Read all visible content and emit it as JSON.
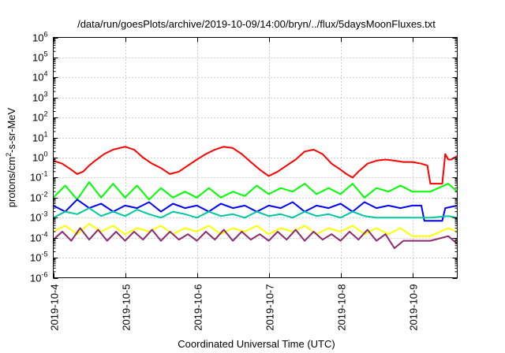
{
  "chart_data": {
    "type": "line",
    "title": "/data/run/goesPlots/archive/2019-10-09/14:00/bryn/../flux/5daysMoonFluxes.txt",
    "xlabel": "Coordinated Universal Time (UTC)",
    "ylabel": {
      "prefix": "protons/cm",
      "sup": "2",
      "suffix": "-s-sr-MeV"
    },
    "yscale": "log",
    "ylim": [
      1e-06,
      1000000.0
    ],
    "xlim": [
      "2019-10-04",
      "2019-10-09T15:00"
    ],
    "grid": true,
    "xticks": [
      "2019-10-4",
      "2019-10-5",
      "2019-10-6",
      "2019-10-7",
      "2019-10-8",
      "2019-10-9"
    ],
    "yticks": [
      {
        "base": "10",
        "exp": "-6"
      },
      {
        "base": "10",
        "exp": "-5"
      },
      {
        "base": "10",
        "exp": "-4"
      },
      {
        "base": "10",
        "exp": "-3"
      },
      {
        "base": "10",
        "exp": "-2"
      },
      {
        "base": "10",
        "exp": "-1"
      },
      {
        "base": "10",
        "exp": "0"
      },
      {
        "base": "10",
        "exp": "1"
      },
      {
        "base": "10",
        "exp": "2"
      },
      {
        "base": "10",
        "exp": "3"
      },
      {
        "base": "10",
        "exp": "4"
      },
      {
        "base": "10",
        "exp": "5"
      },
      {
        "base": "10",
        "exp": "6"
      }
    ],
    "series": [
      {
        "color": "#ff0000",
        "points": [
          [
            "2019-10-04T00:00",
            0.7
          ],
          [
            "2019-10-04T03:00",
            0.5
          ],
          [
            "2019-10-04T06:00",
            0.25
          ],
          [
            "2019-10-04T08:00",
            0.15
          ],
          [
            "2019-10-04T10:00",
            0.2
          ],
          [
            "2019-10-04T12:00",
            0.4
          ],
          [
            "2019-10-04T14:00",
            0.7
          ],
          [
            "2019-10-04T17:00",
            1.5
          ],
          [
            "2019-10-04T20:00",
            2.5
          ],
          [
            "2019-10-05T00:00",
            3.5
          ],
          [
            "2019-10-05T03:00",
            2.5
          ],
          [
            "2019-10-05T06:00",
            1.0
          ],
          [
            "2019-10-05T09:00",
            0.5
          ],
          [
            "2019-10-05T12:00",
            0.3
          ],
          [
            "2019-10-05T15:00",
            0.15
          ],
          [
            "2019-10-05T18:00",
            0.2
          ],
          [
            "2019-10-05T21:00",
            0.4
          ],
          [
            "2019-10-06T00:00",
            0.8
          ],
          [
            "2019-10-06T03:00",
            1.5
          ],
          [
            "2019-10-06T06:00",
            2.5
          ],
          [
            "2019-10-06T09:00",
            3.5
          ],
          [
            "2019-10-06T12:00",
            3.0
          ],
          [
            "2019-10-06T15:00",
            1.5
          ],
          [
            "2019-10-06T18:00",
            0.6
          ],
          [
            "2019-10-06T21:00",
            0.25
          ],
          [
            "2019-10-07T00:00",
            0.12
          ],
          [
            "2019-10-07T03:00",
            0.2
          ],
          [
            "2019-10-07T06:00",
            0.4
          ],
          [
            "2019-10-07T09:00",
            0.8
          ],
          [
            "2019-10-07T12:00",
            2.0
          ],
          [
            "2019-10-07T15:00",
            2.5
          ],
          [
            "2019-10-07T18:00",
            1.5
          ],
          [
            "2019-10-07T21:00",
            0.5
          ],
          [
            "2019-10-08T00:00",
            0.25
          ],
          [
            "2019-10-08T02:00",
            0.15
          ],
          [
            "2019-10-08T04:00",
            0.1
          ],
          [
            "2019-10-08T06:00",
            0.2
          ],
          [
            "2019-10-08T09:00",
            0.5
          ],
          [
            "2019-10-08T12:00",
            0.7
          ],
          [
            "2019-10-08T15:00",
            0.8
          ],
          [
            "2019-10-08T18:00",
            0.7
          ],
          [
            "2019-10-08T21:00",
            0.6
          ],
          [
            "2019-10-09T00:00",
            0.6
          ],
          [
            "2019-10-09T03:00",
            0.5
          ],
          [
            "2019-10-09T05:00",
            0.4
          ],
          [
            "2019-10-09T06:00",
            0.05
          ],
          [
            "2019-10-09T08:00",
            0.05
          ],
          [
            "2019-10-09T10:00",
            0.05
          ],
          [
            "2019-10-09T11:00",
            1.5
          ],
          [
            "2019-10-09T12:00",
            0.8
          ],
          [
            "2019-10-09T13:00",
            0.8
          ],
          [
            "2019-10-09T15:00",
            1.2
          ]
        ]
      },
      {
        "color": "#00ff00",
        "points": [
          [
            "2019-10-04T00:00",
            0.01
          ],
          [
            "2019-10-04T04:00",
            0.04
          ],
          [
            "2019-10-04T08:00",
            0.008
          ],
          [
            "2019-10-04T12:00",
            0.06
          ],
          [
            "2019-10-04T16:00",
            0.01
          ],
          [
            "2019-10-04T20:00",
            0.05
          ],
          [
            "2019-10-05T00:00",
            0.01
          ],
          [
            "2019-10-05T04:00",
            0.04
          ],
          [
            "2019-10-05T08:00",
            0.008
          ],
          [
            "2019-10-05T12:00",
            0.03
          ],
          [
            "2019-10-05T16:00",
            0.01
          ],
          [
            "2019-10-05T20:00",
            0.02
          ],
          [
            "2019-10-06T00:00",
            0.01
          ],
          [
            "2019-10-06T04:00",
            0.03
          ],
          [
            "2019-10-06T08:00",
            0.01
          ],
          [
            "2019-10-06T12:00",
            0.02
          ],
          [
            "2019-10-06T16:00",
            0.012
          ],
          [
            "2019-10-06T20:00",
            0.04
          ],
          [
            "2019-10-07T00:00",
            0.015
          ],
          [
            "2019-10-07T04:00",
            0.03
          ],
          [
            "2019-10-07T08:00",
            0.02
          ],
          [
            "2019-10-07T12:00",
            0.05
          ],
          [
            "2019-10-07T16:00",
            0.015
          ],
          [
            "2019-10-07T20:00",
            0.03
          ],
          [
            "2019-10-08T00:00",
            0.015
          ],
          [
            "2019-10-08T04:00",
            0.05
          ],
          [
            "2019-10-08T08:00",
            0.01
          ],
          [
            "2019-10-08T12:00",
            0.03
          ],
          [
            "2019-10-08T16:00",
            0.02
          ],
          [
            "2019-10-08T20:00",
            0.04
          ],
          [
            "2019-10-09T00:00",
            0.02
          ],
          [
            "2019-10-09T06:00",
            0.02
          ],
          [
            "2019-10-09T12:00",
            0.05
          ],
          [
            "2019-10-09T15:00",
            0.02
          ]
        ]
      },
      {
        "color": "#0000ff",
        "points": [
          [
            "2019-10-04T00:00",
            0.004
          ],
          [
            "2019-10-04T04:00",
            0.002
          ],
          [
            "2019-10-04T08:00",
            0.008
          ],
          [
            "2019-10-04T12:00",
            0.003
          ],
          [
            "2019-10-04T16:00",
            0.005
          ],
          [
            "2019-10-04T20:00",
            0.002
          ],
          [
            "2019-10-05T00:00",
            0.004
          ],
          [
            "2019-10-05T04:00",
            0.003
          ],
          [
            "2019-10-05T08:00",
            0.006
          ],
          [
            "2019-10-05T12:00",
            0.002
          ],
          [
            "2019-10-05T16:00",
            0.005
          ],
          [
            "2019-10-05T20:00",
            0.003
          ],
          [
            "2019-10-06T00:00",
            0.004
          ],
          [
            "2019-10-06T04:00",
            0.002
          ],
          [
            "2019-10-06T08:00",
            0.005
          ],
          [
            "2019-10-06T12:00",
            0.003
          ],
          [
            "2019-10-06T16:00",
            0.004
          ],
          [
            "2019-10-06T20:00",
            0.002
          ],
          [
            "2019-10-07T00:00",
            0.004
          ],
          [
            "2019-10-07T04:00",
            0.003
          ],
          [
            "2019-10-07T08:00",
            0.006
          ],
          [
            "2019-10-07T12:00",
            0.002
          ],
          [
            "2019-10-07T16:00",
            0.004
          ],
          [
            "2019-10-07T20:00",
            0.003
          ],
          [
            "2019-10-08T00:00",
            0.005
          ],
          [
            "2019-10-08T04:00",
            0.002
          ],
          [
            "2019-10-08T08:00",
            0.006
          ],
          [
            "2019-10-08T12:00",
            0.003
          ],
          [
            "2019-10-08T16:00",
            0.004
          ],
          [
            "2019-10-08T20:00",
            0.003
          ],
          [
            "2019-10-09T00:00",
            0.004
          ],
          [
            "2019-10-09T03:00",
            0.004
          ],
          [
            "2019-10-09T04:00",
            0.0007
          ],
          [
            "2019-10-09T10:00",
            0.0007
          ],
          [
            "2019-10-09T11:00",
            0.003
          ],
          [
            "2019-10-09T15:00",
            0.004
          ]
        ]
      },
      {
        "color": "#00c8a0",
        "points": [
          [
            "2019-10-04T00:00",
            0.001
          ],
          [
            "2019-10-04T04:00",
            0.002
          ],
          [
            "2019-10-04T08:00",
            0.0015
          ],
          [
            "2019-10-04T12:00",
            0.003
          ],
          [
            "2019-10-04T16:00",
            0.0012
          ],
          [
            "2019-10-04T20:00",
            0.002
          ],
          [
            "2019-10-05T00:00",
            0.0012
          ],
          [
            "2019-10-05T04:00",
            0.0025
          ],
          [
            "2019-10-05T08:00",
            0.0015
          ],
          [
            "2019-10-05T12:00",
            0.001
          ],
          [
            "2019-10-05T16:00",
            0.002
          ],
          [
            "2019-10-05T20:00",
            0.0015
          ],
          [
            "2019-10-06T00:00",
            0.001
          ],
          [
            "2019-10-06T04:00",
            0.002
          ],
          [
            "2019-10-06T08:00",
            0.0012
          ],
          [
            "2019-10-06T12:00",
            0.0015
          ],
          [
            "2019-10-06T16:00",
            0.001
          ],
          [
            "2019-10-06T20:00",
            0.002
          ],
          [
            "2019-10-07T00:00",
            0.0012
          ],
          [
            "2019-10-07T04:00",
            0.0015
          ],
          [
            "2019-10-07T08:00",
            0.001
          ],
          [
            "2019-10-07T12:00",
            0.002
          ],
          [
            "2019-10-07T16:00",
            0.0012
          ],
          [
            "2019-10-07T20:00",
            0.0015
          ],
          [
            "2019-10-08T00:00",
            0.001
          ],
          [
            "2019-10-08T04:00",
            0.002
          ],
          [
            "2019-10-08T08:00",
            0.0012
          ],
          [
            "2019-10-08T12:00",
            0.001
          ],
          [
            "2019-10-08T16:00",
            0.001
          ],
          [
            "2019-10-08T20:00",
            0.001
          ],
          [
            "2019-10-09T00:00",
            0.001
          ],
          [
            "2019-10-09T06:00",
            0.001
          ],
          [
            "2019-10-09T12:00",
            0.0012
          ],
          [
            "2019-10-09T15:00",
            0.001
          ]
        ]
      },
      {
        "color": "#ffff00",
        "points": [
          [
            "2019-10-04T00:00",
            0.0002
          ],
          [
            "2019-10-04T04:00",
            0.0004
          ],
          [
            "2019-10-04T08:00",
            0.00015
          ],
          [
            "2019-10-04T12:00",
            0.0005
          ],
          [
            "2019-10-04T16:00",
            0.0002
          ],
          [
            "2019-10-04T20:00",
            0.0004
          ],
          [
            "2019-10-05T00:00",
            0.00015
          ],
          [
            "2019-10-05T04:00",
            0.0003
          ],
          [
            "2019-10-05T08:00",
            0.0002
          ],
          [
            "2019-10-05T12:00",
            0.0004
          ],
          [
            "2019-10-05T16:00",
            0.00015
          ],
          [
            "2019-10-05T20:00",
            0.0003
          ],
          [
            "2019-10-06T00:00",
            0.0002
          ],
          [
            "2019-10-06T04:00",
            0.0004
          ],
          [
            "2019-10-06T08:00",
            0.00015
          ],
          [
            "2019-10-06T12:00",
            0.0003
          ],
          [
            "2019-10-06T16:00",
            0.0002
          ],
          [
            "2019-10-06T20:00",
            0.0004
          ],
          [
            "2019-10-07T00:00",
            0.00015
          ],
          [
            "2019-10-07T04:00",
            0.0003
          ],
          [
            "2019-10-07T08:00",
            0.0002
          ],
          [
            "2019-10-07T12:00",
            0.0004
          ],
          [
            "2019-10-07T16:00",
            0.00015
          ],
          [
            "2019-10-07T20:00",
            0.0003
          ],
          [
            "2019-10-08T00:00",
            0.0002
          ],
          [
            "2019-10-08T04:00",
            0.0004
          ],
          [
            "2019-10-08T08:00",
            0.00015
          ],
          [
            "2019-10-08T12:00",
            0.0003
          ],
          [
            "2019-10-08T16:00",
            0.00015
          ],
          [
            "2019-10-08T20:00",
            0.0003
          ],
          [
            "2019-10-09T00:00",
            0.00012
          ],
          [
            "2019-10-09T06:00",
            0.00012
          ],
          [
            "2019-10-09T12:00",
            0.0003
          ],
          [
            "2019-10-09T15:00",
            0.0002
          ]
        ]
      },
      {
        "color": "#8c2a6e",
        "points": [
          [
            "2019-10-04T00:00",
            8e-05
          ],
          [
            "2019-10-04T03:00",
            0.0002
          ],
          [
            "2019-10-04T06:00",
            7e-05
          ],
          [
            "2019-10-04T09:00",
            0.0003
          ],
          [
            "2019-10-04T12:00",
            8e-05
          ],
          [
            "2019-10-04T15:00",
            0.00025
          ],
          [
            "2019-10-04T18:00",
            7e-05
          ],
          [
            "2019-10-04T21:00",
            0.0002
          ],
          [
            "2019-10-05T00:00",
            7e-05
          ],
          [
            "2019-10-05T03:00",
            0.0002
          ],
          [
            "2019-10-05T06:00",
            8e-05
          ],
          [
            "2019-10-05T09:00",
            0.00025
          ],
          [
            "2019-10-05T12:00",
            7e-05
          ],
          [
            "2019-10-05T15:00",
            0.0002
          ],
          [
            "2019-10-05T18:00",
            8e-05
          ],
          [
            "2019-10-05T21:00",
            0.00015
          ],
          [
            "2019-10-06T00:00",
            7e-05
          ],
          [
            "2019-10-06T03:00",
            0.0002
          ],
          [
            "2019-10-06T06:00",
            8e-05
          ],
          [
            "2019-10-06T09:00",
            0.00025
          ],
          [
            "2019-10-06T12:00",
            7e-05
          ],
          [
            "2019-10-06T15:00",
            0.0002
          ],
          [
            "2019-10-06T18:00",
            8e-05
          ],
          [
            "2019-10-06T21:00",
            0.00015
          ],
          [
            "2019-10-07T00:00",
            7e-05
          ],
          [
            "2019-10-07T03:00",
            0.0002
          ],
          [
            "2019-10-07T06:00",
            8e-05
          ],
          [
            "2019-10-07T09:00",
            0.00025
          ],
          [
            "2019-10-07T12:00",
            7e-05
          ],
          [
            "2019-10-07T15:00",
            0.0002
          ],
          [
            "2019-10-07T18:00",
            8e-05
          ],
          [
            "2019-10-07T21:00",
            0.00015
          ],
          [
            "2019-10-08T00:00",
            7e-05
          ],
          [
            "2019-10-08T03:00",
            0.0002
          ],
          [
            "2019-10-08T06:00",
            8e-05
          ],
          [
            "2019-10-08T09:00",
            0.00025
          ],
          [
            "2019-10-08T12:00",
            7e-05
          ],
          [
            "2019-10-08T15:00",
            0.00015
          ],
          [
            "2019-10-08T18:00",
            3e-05
          ],
          [
            "2019-10-08T21:00",
            7e-05
          ],
          [
            "2019-10-09T00:00",
            7e-05
          ],
          [
            "2019-10-09T06:00",
            7e-05
          ],
          [
            "2019-10-09T12:00",
            0.00012
          ],
          [
            "2019-10-09T15:00",
            5e-05
          ]
        ]
      }
    ]
  }
}
